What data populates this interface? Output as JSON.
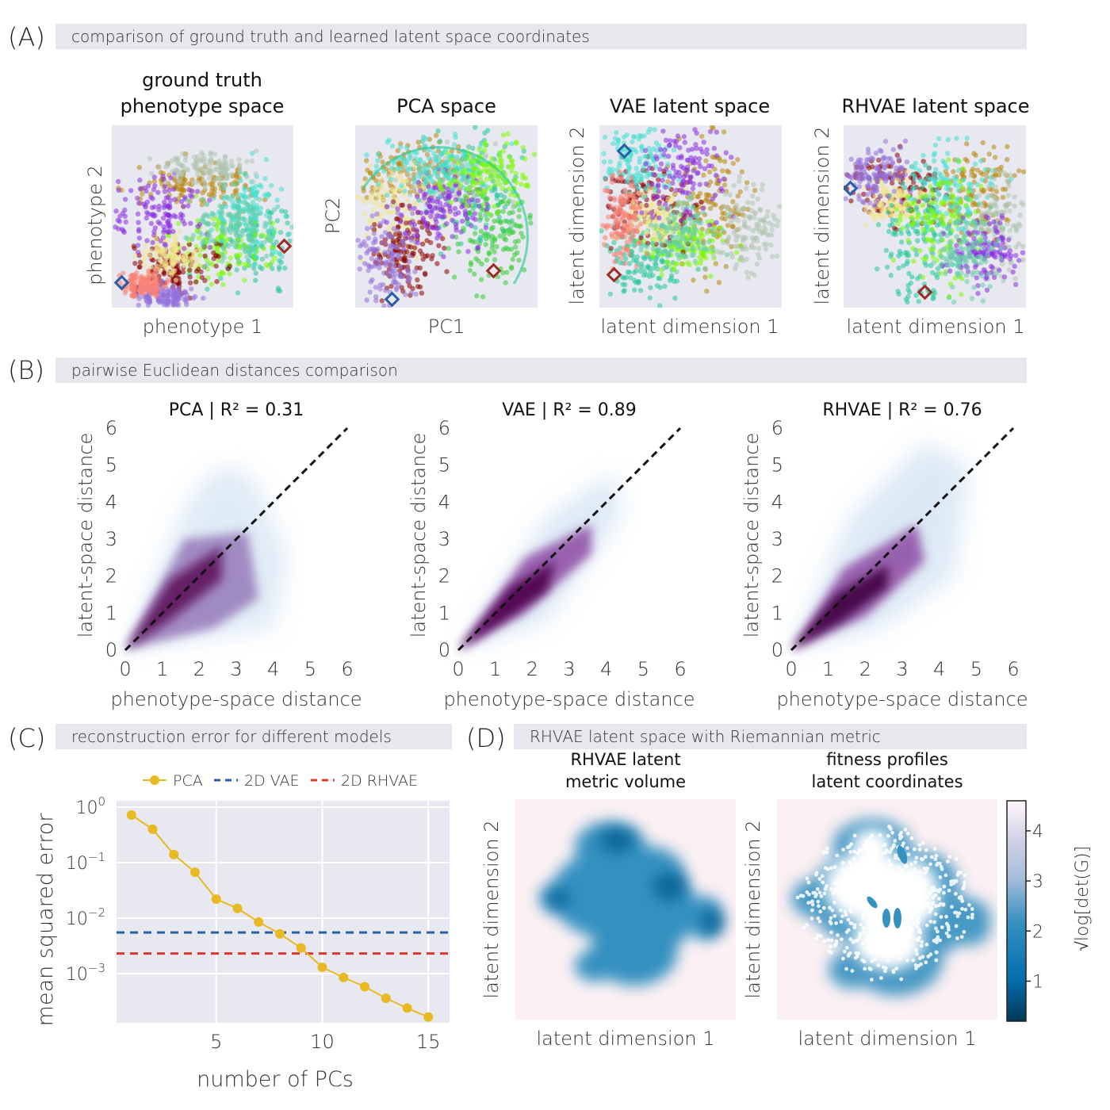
{
  "panels": {
    "A": {
      "tag": "(A)",
      "bar": "comparison of ground truth and learned latent space coordinates",
      "plots": [
        {
          "title": "ground truth\nphenotype space",
          "xlabel": "phenotype 1",
          "ylabel": "phenotype 2"
        },
        {
          "title": "PCA space",
          "xlabel": "PC1",
          "ylabel": "PC2"
        },
        {
          "title": "VAE latent space",
          "xlabel": "latent dimension 1",
          "ylabel": "latent dimension 2"
        },
        {
          "title": "RHVAE latent space",
          "xlabel": "latent dimension 1",
          "ylabel": "latent dimension 2"
        }
      ]
    },
    "B": {
      "tag": "(B)",
      "bar": "pairwise Euclidean distances comparison"
    },
    "C": {
      "tag": "(C)",
      "bar": "reconstruction error for different models"
    },
    "D": {
      "tag": "(D)",
      "bar": "RHVAE latent space with Riemannian metric",
      "plots": [
        {
          "title": "RHVAE latent\nmetric volume",
          "xlabel": "latent dimension 1",
          "ylabel": "latent dimension 2"
        },
        {
          "title": "fitness profiles\nlatent coordinates",
          "xlabel": "latent dimension 1",
          "ylabel": "latent dimension 2"
        }
      ],
      "colorbar_label": "√log[det(G)]",
      "colorbar_ticks": [
        "1",
        "2",
        "3",
        "4"
      ]
    }
  },
  "chart_data": [
    {
      "type": "heatmap",
      "title": "PCA | R² = 0.31",
      "xlabel": "phenotype-space distance",
      "ylabel": "latent-space distance",
      "xlim": [
        0,
        6
      ],
      "ylim": [
        0,
        6
      ],
      "xticks": [
        "0",
        "1",
        "2",
        "3",
        "4",
        "5",
        "6"
      ],
      "yticks": [
        "0",
        "1",
        "2",
        "3",
        "4",
        "5",
        "6"
      ],
      "r2": 0.31
    },
    {
      "type": "heatmap",
      "title": "VAE | R² = 0.89",
      "xlabel": "phenotype-space distance",
      "ylabel": "latent-space distance",
      "xlim": [
        0,
        6
      ],
      "ylim": [
        0,
        6
      ],
      "xticks": [
        "0",
        "1",
        "2",
        "3",
        "4",
        "5",
        "6"
      ],
      "yticks": [
        "0",
        "1",
        "2",
        "3",
        "4",
        "5",
        "6"
      ],
      "r2": 0.89
    },
    {
      "type": "heatmap",
      "title": "RHVAE | R² = 0.76",
      "xlabel": "phenotype-space distance",
      "ylabel": "latent-space distance",
      "xlim": [
        0,
        6
      ],
      "ylim": [
        0,
        6
      ],
      "xticks": [
        "0",
        "1",
        "2",
        "3",
        "4",
        "5",
        "6"
      ],
      "yticks": [
        "0",
        "1",
        "2",
        "3",
        "4",
        "5",
        "6"
      ],
      "r2": 0.76
    },
    {
      "type": "line",
      "xlabel": "number of PCs",
      "ylabel": "mean squared error",
      "yscale": "log",
      "ylim": [
        0.00013,
        1.3
      ],
      "xlim": [
        0.3,
        16
      ],
      "xticks": [
        "5",
        "10",
        "15"
      ],
      "yticks": [
        "10^0",
        "10^-1",
        "10^-2",
        "10^-3"
      ],
      "series": [
        {
          "name": "PCA",
          "x": [
            1,
            2,
            3,
            4,
            5,
            6,
            7,
            8,
            9,
            10,
            11,
            12,
            13,
            14,
            15
          ],
          "values": [
            0.72,
            0.4,
            0.14,
            0.067,
            0.022,
            0.015,
            0.0085,
            0.0052,
            0.0029,
            0.0013,
            0.00085,
            0.00058,
            0.00036,
            0.00024,
            0.000165
          ],
          "color": "#e8b923"
        },
        {
          "name": "2D VAE",
          "constant": 0.0055,
          "color": "#2b5ea7"
        },
        {
          "name": "2D RHVAE",
          "constant": 0.0023,
          "color": "#d9382d"
        }
      ]
    }
  ]
}
